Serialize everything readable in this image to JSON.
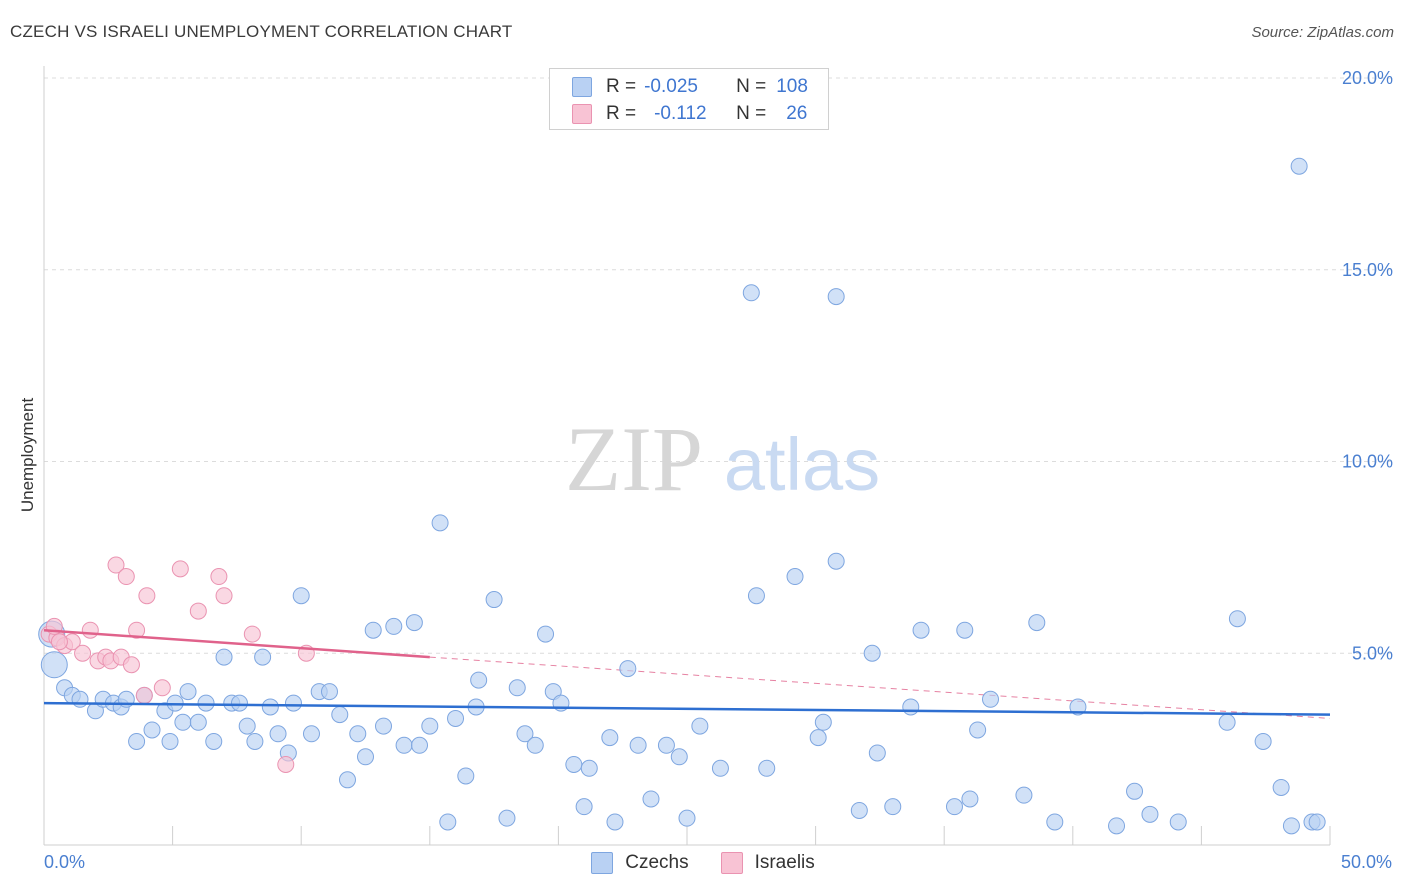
{
  "header": {
    "title": "CZECH VS ISRAELI UNEMPLOYMENT CORRELATION CHART",
    "source": "Source: ZipAtlas.com"
  },
  "watermark": {
    "part1": "ZIP",
    "part2": "atlas"
  },
  "colors": {
    "czech_fill": "#b9d1f3",
    "czech_stroke": "#7ea6e0",
    "czech_line": "#2e6fd1",
    "israeli_fill": "#f8c3d4",
    "israeli_stroke": "#ea93b1",
    "israeli_line": "#e0628b",
    "tick_label": "#4a7fd0"
  },
  "legend": {
    "rows": [
      {
        "r_label": "R =",
        "r_value": "-0.025",
        "n_label": "N =",
        "n_value": "108"
      },
      {
        "r_label": "R =",
        "r_value": "-0.112",
        "n_label": "N =",
        "n_value": "26"
      }
    ]
  },
  "chart_data": {
    "type": "scatter",
    "title": "CZECH VS ISRAELI UNEMPLOYMENT CORRELATION CHART",
    "xlabel": "",
    "ylabel": "Unemployment",
    "xlim": [
      0,
      50
    ],
    "ylim": [
      0,
      20
    ],
    "x_tick_labels": [
      "0.0%",
      "50.0%"
    ],
    "y_ticks": [
      {
        "value": 20,
        "label": "20.0%"
      },
      {
        "value": 15,
        "label": "15.0%"
      },
      {
        "value": 10,
        "label": "10.0%"
      },
      {
        "value": 5,
        "label": "5.0%"
      }
    ],
    "grid": true,
    "series": [
      {
        "name": "Czechs",
        "trend": {
          "x": [
            0,
            50
          ],
          "y": [
            3.7,
            3.4
          ]
        },
        "points": [
          [
            0.3,
            5.5
          ],
          [
            0.4,
            4.7
          ],
          [
            0.8,
            4.1
          ],
          [
            1.1,
            3.9
          ],
          [
            1.4,
            3.8
          ],
          [
            2.0,
            3.5
          ],
          [
            2.3,
            3.8
          ],
          [
            2.7,
            3.7
          ],
          [
            3.0,
            3.6
          ],
          [
            3.2,
            3.8
          ],
          [
            3.6,
            2.7
          ],
          [
            3.9,
            3.9
          ],
          [
            4.2,
            3.0
          ],
          [
            4.7,
            3.5
          ],
          [
            4.9,
            2.7
          ],
          [
            5.1,
            3.7
          ],
          [
            5.4,
            3.2
          ],
          [
            5.6,
            4.0
          ],
          [
            6.0,
            3.2
          ],
          [
            6.3,
            3.7
          ],
          [
            6.6,
            2.7
          ],
          [
            7.0,
            4.9
          ],
          [
            7.3,
            3.7
          ],
          [
            7.6,
            3.7
          ],
          [
            7.9,
            3.1
          ],
          [
            8.2,
            2.7
          ],
          [
            8.5,
            4.9
          ],
          [
            8.8,
            3.6
          ],
          [
            9.1,
            2.9
          ],
          [
            9.5,
            2.4
          ],
          [
            9.7,
            3.7
          ],
          [
            10.0,
            6.5
          ],
          [
            10.4,
            2.9
          ],
          [
            10.7,
            4.0
          ],
          [
            11.1,
            4.0
          ],
          [
            11.5,
            3.4
          ],
          [
            11.8,
            1.7
          ],
          [
            12.2,
            2.9
          ],
          [
            12.5,
            2.3
          ],
          [
            12.8,
            5.6
          ],
          [
            13.2,
            3.1
          ],
          [
            13.6,
            5.7
          ],
          [
            14.0,
            2.6
          ],
          [
            14.4,
            5.8
          ],
          [
            14.6,
            2.6
          ],
          [
            15.0,
            3.1
          ],
          [
            15.4,
            8.4
          ],
          [
            15.7,
            0.6
          ],
          [
            16.0,
            3.3
          ],
          [
            16.4,
            1.8
          ],
          [
            16.8,
            3.6
          ],
          [
            16.9,
            4.3
          ],
          [
            17.5,
            6.4
          ],
          [
            18.0,
            0.7
          ],
          [
            18.4,
            4.1
          ],
          [
            18.7,
            2.9
          ],
          [
            19.1,
            2.6
          ],
          [
            19.5,
            5.5
          ],
          [
            19.8,
            4.0
          ],
          [
            20.1,
            3.7
          ],
          [
            20.6,
            2.1
          ],
          [
            21.2,
            2.0
          ],
          [
            21.0,
            1.0
          ],
          [
            22.0,
            2.8
          ],
          [
            22.2,
            0.6
          ],
          [
            22.7,
            4.6
          ],
          [
            23.1,
            2.6
          ],
          [
            23.6,
            1.2
          ],
          [
            24.2,
            2.6
          ],
          [
            24.7,
            2.3
          ],
          [
            25.0,
            0.7
          ],
          [
            25.5,
            3.1
          ],
          [
            26.3,
            2.0
          ],
          [
            27.5,
            14.4
          ],
          [
            27.7,
            6.5
          ],
          [
            28.1,
            2.0
          ],
          [
            29.2,
            7.0
          ],
          [
            30.1,
            2.8
          ],
          [
            30.8,
            14.3
          ],
          [
            30.3,
            3.2
          ],
          [
            30.8,
            7.4
          ],
          [
            31.7,
            0.9
          ],
          [
            32.4,
            2.4
          ],
          [
            32.2,
            5.0
          ],
          [
            33.0,
            1.0
          ],
          [
            33.7,
            3.6
          ],
          [
            34.1,
            5.6
          ],
          [
            35.4,
            1.0
          ],
          [
            35.8,
            5.6
          ],
          [
            36.0,
            1.2
          ],
          [
            36.3,
            3.0
          ],
          [
            36.8,
            3.8
          ],
          [
            38.1,
            1.3
          ],
          [
            38.6,
            5.8
          ],
          [
            39.3,
            0.6
          ],
          [
            40.2,
            3.6
          ],
          [
            41.7,
            0.5
          ],
          [
            42.4,
            1.4
          ],
          [
            43.0,
            0.8
          ],
          [
            44.1,
            0.6
          ],
          [
            46.0,
            3.2
          ],
          [
            46.4,
            5.9
          ],
          [
            47.4,
            2.7
          ],
          [
            48.1,
            1.5
          ],
          [
            48.5,
            0.5
          ],
          [
            48.8,
            17.7
          ],
          [
            49.3,
            0.6
          ],
          [
            49.5,
            0.6
          ]
        ]
      },
      {
        "name": "Israelis",
        "trend": {
          "x": [
            0,
            15
          ],
          "y": [
            5.6,
            4.9
          ]
        },
        "trend_extended": {
          "x": [
            15,
            50
          ],
          "y": [
            4.9,
            3.3
          ]
        },
        "points": [
          [
            0.2,
            5.5
          ],
          [
            0.5,
            5.4
          ],
          [
            0.8,
            5.2
          ],
          [
            1.1,
            5.3
          ],
          [
            1.5,
            5.0
          ],
          [
            1.8,
            5.6
          ],
          [
            2.1,
            4.8
          ],
          [
            2.4,
            4.9
          ],
          [
            2.6,
            4.8
          ],
          [
            2.8,
            7.3
          ],
          [
            3.0,
            4.9
          ],
          [
            3.2,
            7.0
          ],
          [
            3.4,
            4.7
          ],
          [
            3.6,
            5.6
          ],
          [
            3.9,
            3.9
          ],
          [
            4.0,
            6.5
          ],
          [
            4.6,
            4.1
          ],
          [
            5.3,
            7.2
          ],
          [
            6.0,
            6.1
          ],
          [
            6.8,
            7.0
          ],
          [
            7.0,
            6.5
          ],
          [
            8.1,
            5.5
          ],
          [
            9.4,
            2.1
          ],
          [
            10.2,
            5.0
          ],
          [
            0.4,
            5.7
          ],
          [
            0.6,
            5.3
          ]
        ]
      }
    ]
  }
}
